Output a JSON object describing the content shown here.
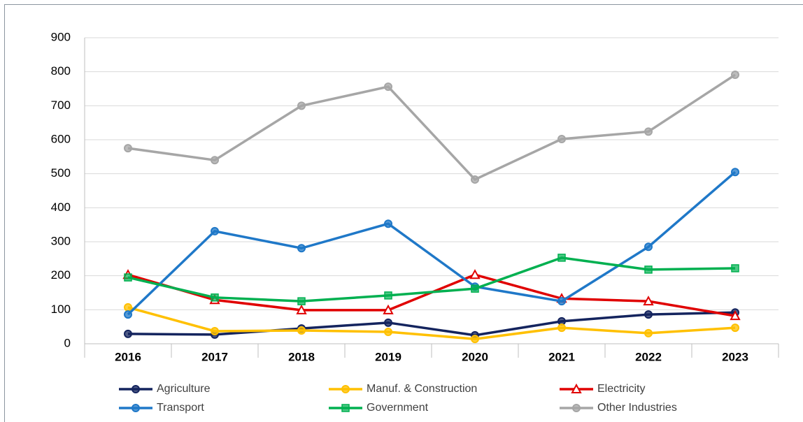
{
  "chart_data": {
    "type": "line",
    "categories": [
      "2016",
      "2017",
      "2018",
      "2019",
      "2020",
      "2021",
      "2022",
      "2023"
    ],
    "series": [
      {
        "name": "Agriculture",
        "color": "#14245e",
        "marker": "circle",
        "values": [
          29,
          27,
          45,
          62,
          25,
          66,
          86,
          92
        ]
      },
      {
        "name": "Manuf. & Construction",
        "color": "#ffc000",
        "marker": "circle",
        "values": [
          107,
          37,
          39,
          35,
          14,
          47,
          31,
          47
        ]
      },
      {
        "name": "Electricity",
        "color": "#e00000",
        "marker": "triangle",
        "values": [
          203,
          129,
          99,
          99,
          203,
          133,
          125,
          82
        ]
      },
      {
        "name": "Transport",
        "color": "#1f78c8",
        "marker": "circle",
        "values": [
          86,
          331,
          281,
          353,
          168,
          125,
          285,
          505
        ]
      },
      {
        "name": "Government",
        "color": "#00b050",
        "marker": "square",
        "values": [
          195,
          136,
          125,
          142,
          162,
          253,
          218,
          222
        ]
      },
      {
        "name": "Other Industries",
        "color": "#a6a6a6",
        "marker": "circle",
        "values": [
          575,
          540,
          700,
          756,
          483,
          602,
          624,
          791
        ]
      }
    ],
    "ylim": [
      0,
      900
    ],
    "yticks": [
      0,
      100,
      200,
      300,
      400,
      500,
      600,
      700,
      800,
      900
    ],
    "grid": true
  }
}
